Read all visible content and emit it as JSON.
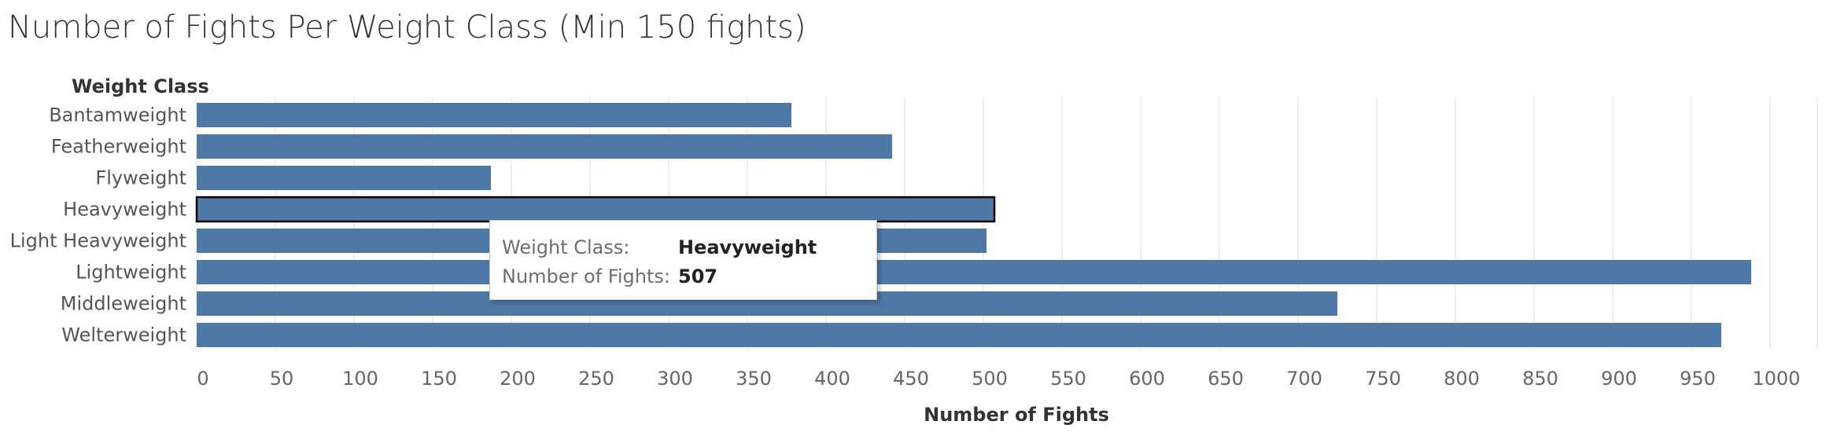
{
  "title": "Number of Fights Per Weight Class (Min 150 fights)",
  "colors": {
    "bar": "#4e79a7",
    "grid": "#ececec",
    "highlight_border": "#000000"
  },
  "chart_data": {
    "type": "bar",
    "orientation": "horizontal",
    "title": "Number of Fights Per Weight Class (Min 150 fights)",
    "category_header": "Weight Class",
    "xlabel": "Number of Fights",
    "categories": [
      "Bantamweight",
      "Featherweight",
      "Flyweight",
      "Heavyweight",
      "Light Heavyweight",
      "Lightweight",
      "Middleweight",
      "Welterweight"
    ],
    "values": [
      378,
      442,
      187,
      507,
      502,
      988,
      725,
      969
    ],
    "xlim": [
      0,
      1040
    ],
    "ticks": [
      0,
      50,
      100,
      150,
      200,
      250,
      300,
      350,
      400,
      450,
      500,
      550,
      600,
      650,
      700,
      750,
      800,
      850,
      900,
      950,
      1000
    ],
    "grid": true,
    "highlighted": "Heavyweight"
  },
  "tooltip": {
    "rows": [
      {
        "key": "Weight Class:",
        "value": "Heavyweight"
      },
      {
        "key": "Number of Fights:",
        "value": "507"
      }
    ]
  }
}
